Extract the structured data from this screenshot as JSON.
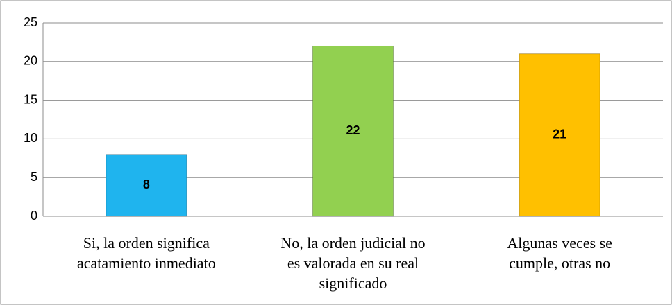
{
  "chart_data": {
    "type": "bar",
    "categories": [
      "Si, la orden significa acatamiento inmediato",
      "No, la orden judicial no es valorada en su real significado",
      "Algunas veces se cumple, otras no"
    ],
    "values": [
      8,
      22,
      21
    ],
    "colors": [
      "#1fb4ee",
      "#92d050",
      "#ffc000"
    ],
    "ylim": [
      0,
      25
    ],
    "yticks": [
      0,
      5,
      10,
      15,
      20,
      25
    ],
    "grid": true
  }
}
